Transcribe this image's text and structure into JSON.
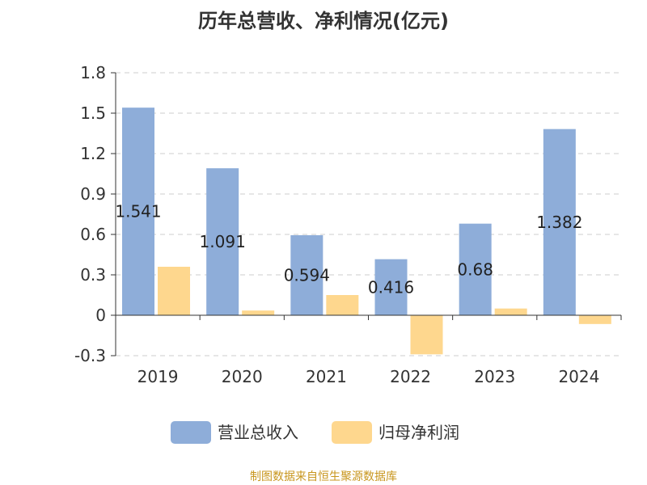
{
  "chart_data": {
    "type": "bar",
    "title": "历年总营收、净利情况(亿元)",
    "categories": [
      "2019",
      "2020",
      "2021",
      "2022",
      "2023",
      "2024"
    ],
    "series": [
      {
        "name": "营业总收入",
        "values": [
          1.541,
          1.091,
          0.594,
          0.416,
          0.68,
          1.382
        ],
        "labels": [
          "1.541",
          "1.091",
          "0.594",
          "0.416",
          "0.68",
          "1.382"
        ],
        "color": "#8eadd9"
      },
      {
        "name": "归母净利润",
        "values": [
          0.36,
          0.035,
          0.15,
          -0.29,
          0.05,
          -0.065
        ],
        "color": "#fed78e"
      }
    ],
    "ylim": [
      -0.3,
      1.8
    ],
    "yticks": [
      "-0.3",
      "0",
      "0.3",
      "0.6",
      "0.9",
      "1.2",
      "1.5",
      "1.8"
    ],
    "grid": true,
    "legend_position": "bottom"
  },
  "source_text": "制图数据来自恒生聚源数据库",
  "colors": {
    "axis": "#333333",
    "grid": "#cccccc"
  }
}
